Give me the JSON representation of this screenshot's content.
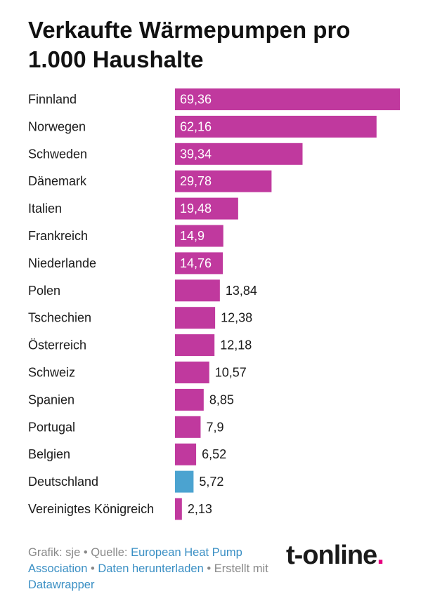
{
  "title": "Verkaufte Wärmepumpen pro 1.000 Haushalte",
  "chart_data": {
    "type": "bar",
    "orientation": "horizontal",
    "title": "Verkaufte Wärmepumpen pro 1.000 Haushalte",
    "categories": [
      "Finnland",
      "Norwegen",
      "Schweden",
      "Dänemark",
      "Italien",
      "Frankreich",
      "Niederlande",
      "Polen",
      "Tschechien",
      "Österreich",
      "Schweiz",
      "Spanien",
      "Portugal",
      "Belgien",
      "Deutschland",
      "Vereinigtes Königreich"
    ],
    "values": [
      69.36,
      62.16,
      39.34,
      29.78,
      19.48,
      14.9,
      14.76,
      13.84,
      12.38,
      12.18,
      10.57,
      8.85,
      7.9,
      6.52,
      5.72,
      2.13
    ],
    "value_labels": [
      "69,36",
      "62,16",
      "39,34",
      "29,78",
      "19,48",
      "14,9",
      "14,76",
      "13,84",
      "12,38",
      "12,18",
      "10,57",
      "8,85",
      "7,9",
      "6,52",
      "5,72",
      "2,13"
    ],
    "highlight": "Deutschland",
    "colors": {
      "bar": "#c0399e",
      "highlight": "#4ba3d0",
      "label_inside": "#ffffff",
      "label_outside": "#1a1a1a"
    },
    "xlim": [
      0,
      69.36
    ],
    "grid": false
  },
  "footer": {
    "credit": "Grafik: sje • Quelle: ",
    "source_link": "European Heat Pump Association",
    "sep1": " • ",
    "download_link": "Daten herunterladen",
    "sep2": " • Erstellt mit ",
    "tool_link": "Datawrapper"
  },
  "logo": {
    "text": "t-online",
    "dot": "."
  }
}
